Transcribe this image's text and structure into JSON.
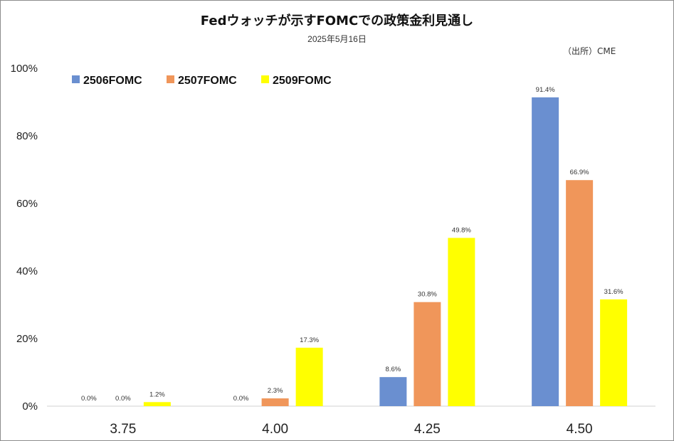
{
  "chart_data": {
    "type": "bar",
    "title": "Fedウォッチが示すFOMCでの政策金利見通し",
    "subtitle": "2025年5月16日",
    "source": "（出所）CME",
    "categories": [
      "3.75",
      "4.00",
      "4.25",
      "4.50"
    ],
    "series": [
      {
        "name": "2506FOMC",
        "color": "#6a8fd0",
        "values": [
          0.0,
          0.0,
          8.6,
          91.4
        ],
        "labels": [
          "0.0%",
          "0.0%",
          "8.6%",
          "91.4%"
        ]
      },
      {
        "name": "2507FOMC",
        "color": "#f0965a",
        "values": [
          0.0,
          2.3,
          30.8,
          66.9
        ],
        "labels": [
          "0.0%",
          "2.3%",
          "30.8%",
          "66.9%"
        ]
      },
      {
        "name": "2509FOMC",
        "color": "#ffff00",
        "values": [
          1.2,
          17.3,
          49.8,
          31.6
        ],
        "labels": [
          "1.2%",
          "17.3%",
          "49.8%",
          "31.6%"
        ]
      }
    ],
    "ylim": [
      0,
      100
    ],
    "yticks": [
      "0%",
      "20%",
      "40%",
      "60%",
      "80%",
      "100%"
    ],
    "grid": false,
    "legend_position": "top-left"
  }
}
